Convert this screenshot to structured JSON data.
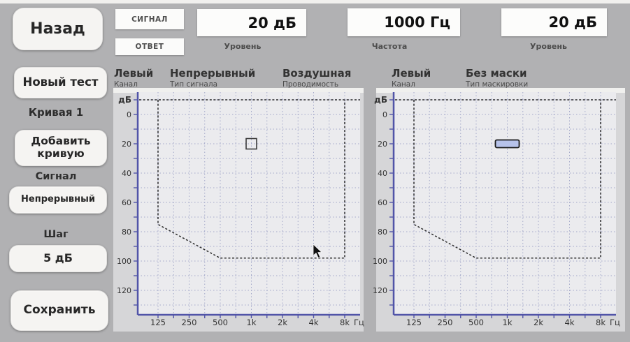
{
  "colors": {
    "bg": "#b1b1b3",
    "axis": "#5154a8",
    "grid": "#a4a9c9",
    "boundary": "#2b2b2b",
    "plot_bg": "#ebebee",
    "panel_bg": "#d6d6d8",
    "panel_top_strip": "#f0f0ee",
    "marker_fill": "#b6c2ea",
    "marker_stroke": "#1c1c1c",
    "tick_text": "#333333"
  },
  "topbar": {
    "signal_lamp": "СИГНАЛ",
    "response_lamp": "ОТВЕТ",
    "readouts": [
      {
        "value": "20 дБ",
        "label": "Уровень"
      },
      {
        "value": "1000 Гц",
        "label": "Частота"
      },
      {
        "value": "20 дБ",
        "label": "Уровень"
      }
    ]
  },
  "sidebar": {
    "back": "Назад",
    "new_test": "Новый тест",
    "curve": "Кривая 1",
    "add_curve": "Добавить кривую",
    "signal_heading": "Сигнал",
    "signal_value": "Непрерывный",
    "step_heading": "Шаг",
    "step_value": "5 дБ",
    "save": "Сохранить"
  },
  "chart_headers": [
    [
      {
        "value": "Левый",
        "label": "Канал"
      },
      {
        "value": "Непрерывный",
        "label": "Тип сигнала"
      },
      {
        "value": "Воздушная",
        "label": "Проводимость"
      }
    ],
    [
      {
        "value": "Левый",
        "label": "Канал"
      },
      {
        "value": "Без маски",
        "label": "Тип маскировки"
      }
    ]
  ],
  "chart_data": [
    {
      "type": "scatter",
      "name": "left-channel-audiogram",
      "channel": "Левый",
      "signal_type": "Непрерывный",
      "conduction": "Воздушная",
      "ylabel": "дБ",
      "x_unit": "Гц",
      "x_ticklabels": [
        "125",
        "250",
        "500",
        "1k",
        "2k",
        "4k",
        "8k"
      ],
      "x_freqs_hz": [
        125,
        250,
        500,
        1000,
        2000,
        4000,
        8000
      ],
      "y_ticklabels": [
        0,
        20,
        40,
        60,
        80,
        100,
        120
      ],
      "ylim": [
        -10,
        135
      ],
      "grid": true,
      "points": [
        {
          "freq_label": "1k",
          "freq_hz": 1000,
          "db": 20,
          "marker": "open-square"
        }
      ],
      "max_output_boundary": {
        "top_db": -10,
        "vertices": [
          {
            "freq": "125",
            "db": 75
          },
          {
            "freq": "500",
            "db": 98
          },
          {
            "freq": "8k",
            "db": 98
          }
        ]
      }
    },
    {
      "type": "scatter",
      "name": "right-panel-audiogram",
      "channel": "Левый",
      "masking_type": "Без маски",
      "ylabel": "дБ",
      "x_unit": "Гц",
      "x_ticklabels": [
        "125",
        "250",
        "500",
        "1k",
        "2k",
        "4k",
        "8k"
      ],
      "x_freqs_hz": [
        125,
        250,
        500,
        1000,
        2000,
        4000,
        8000
      ],
      "y_ticklabels": [
        0,
        20,
        40,
        60,
        80,
        100,
        120
      ],
      "ylim": [
        -10,
        135
      ],
      "grid": true,
      "points": [
        {
          "freq_label": "1k",
          "freq_hz": 1000,
          "db": 20,
          "marker": "filled-rect"
        }
      ],
      "max_output_boundary": {
        "top_db": -10,
        "vertices": [
          {
            "freq": "125",
            "db": 75
          },
          {
            "freq": "500",
            "db": 98
          },
          {
            "freq": "8k",
            "db": 98
          }
        ]
      }
    }
  ]
}
